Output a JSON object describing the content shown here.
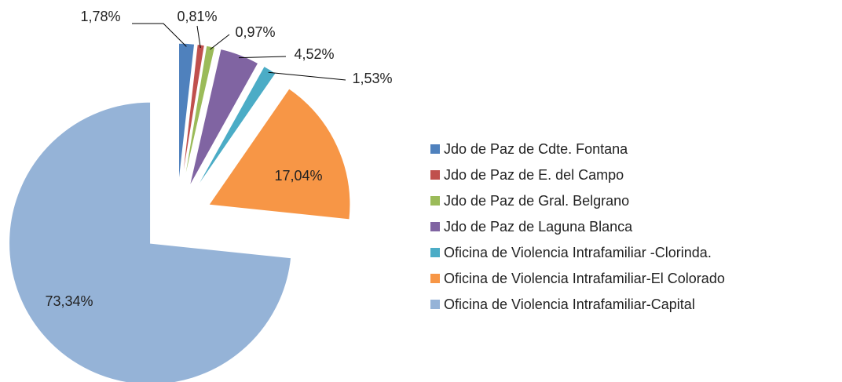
{
  "chart_data": {
    "type": "pie",
    "categories": [
      "Jdo de Paz de Cdte. Fontana",
      "Jdo de Paz de E. del Campo",
      "Jdo de Paz de Gral. Belgrano",
      "Jdo de Paz de Laguna Blanca",
      "Oficina de Violencia Intrafamiliar -Clorinda.",
      "Oficina de Violencia Intrafamiliar-El Colorado",
      "Oficina de Violencia Intrafamiliar-Capital"
    ],
    "values": [
      1.78,
      0.81,
      0.97,
      4.52,
      1.53,
      17.04,
      73.34
    ],
    "value_labels": [
      "1,78%",
      "0,81%",
      "0,97%",
      "4,52%",
      "1,53%",
      "17,04%",
      "73,34%"
    ],
    "colors": [
      "#4f81bd",
      "#c0504d",
      "#9bbb59",
      "#8064a2",
      "#4bacc6",
      "#f79646",
      "#95b3d7"
    ],
    "legend": "right"
  }
}
